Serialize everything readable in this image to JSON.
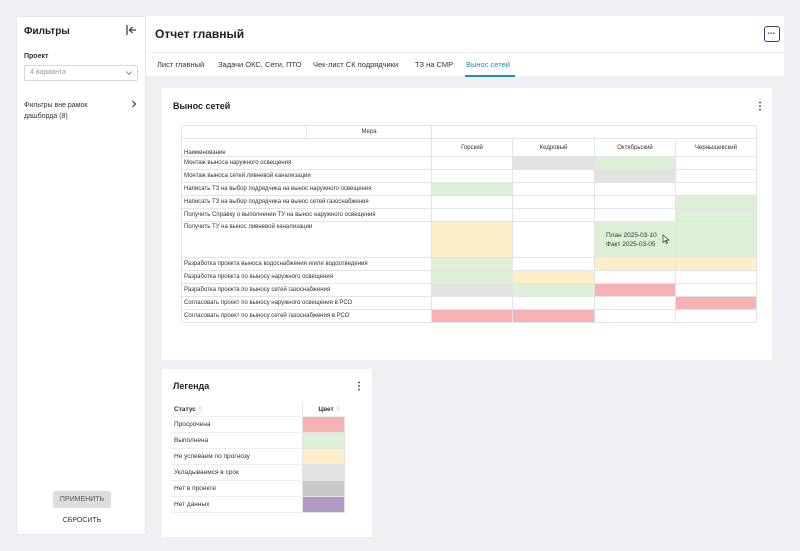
{
  "sidebar": {
    "title": "Фильтры",
    "project_label": "Проект",
    "project_value": "4 варианта",
    "outside_filters": "Фильтры вне рамок дашборда (8)",
    "apply": "ПРИМЕНИТЬ",
    "reset": "СБРОСИТЬ"
  },
  "header": {
    "title": "Отчет главный",
    "tabs": [
      "Лист главный",
      "Задачи ОКС, Сети, ПТО",
      "Чек-лист СК подрядчики",
      "ТЗ на СМР",
      "Вынос сетей"
    ],
    "active_tab": 4
  },
  "card": {
    "title": "Вынос сетей",
    "measure_header": "Мера",
    "name_header": "Наименование",
    "columns": [
      "Горский",
      "Кедровый",
      "Октябрьский",
      "Чернышевский"
    ],
    "rows": [
      {
        "name": "Монтаж выноса наружного освещения",
        "cells": [
          "",
          "gray",
          "green",
          ""
        ]
      },
      {
        "name": "Монтаж выноса сетей ливневой канализации",
        "cells": [
          "",
          "",
          "gray",
          ""
        ]
      },
      {
        "name": "Написать ТЗ на выбор подрядчика на вынос наружного освещения",
        "cells": [
          "green",
          "",
          "",
          ""
        ]
      },
      {
        "name": "Написать ТЗ на выбор подрядчика на вынос сетей газоснабжения",
        "cells": [
          "",
          "",
          "",
          "green"
        ]
      },
      {
        "name": "Получить Справку о выполнении ТУ на вынос наружного освещения",
        "cells": [
          "",
          "",
          "",
          "green"
        ]
      },
      {
        "name": "Получить ТУ на вынос ливневой канализации",
        "cells": [
          "yellow",
          "",
          "green",
          "green"
        ]
      },
      {
        "name": "Разработка проекта выноса водоснабжения и/или водоотведения",
        "cells": [
          "green",
          "",
          "yellow",
          "yellow"
        ]
      },
      {
        "name": "Разработка проекта по выносу наружного освещения",
        "cells": [
          "green",
          "yellow",
          "",
          ""
        ]
      },
      {
        "name": "Разработка проекта по выносу сетей газоснабжения",
        "cells": [
          "gray",
          "green",
          "red",
          ""
        ]
      },
      {
        "name": "Согласовать проект по выносу наружного освещения в РСО",
        "cells": [
          "",
          "",
          "",
          "red"
        ]
      },
      {
        "name": "Согласовать проект по выносу сетей газоснабжения в РСО",
        "cells": [
          "red",
          "red",
          "",
          ""
        ]
      }
    ],
    "tooltip": {
      "plan": "План 2025-03-10",
      "fact": "Факт 2025-03-05"
    }
  },
  "colors": {
    "red": "#f7b3b3",
    "green": "#deefd8",
    "yellow": "#fdf0c8",
    "gray": "#e2e2e2",
    "dgray": "#c8c8c8",
    "purple": "#b39bc2",
    "accent": "#1a8fb8"
  },
  "legend": {
    "title": "Легенда",
    "status_header": "Статус",
    "color_header": "Цвет",
    "items": [
      {
        "label": "Просрочена",
        "color": "red"
      },
      {
        "label": "Выполнена",
        "color": "green"
      },
      {
        "label": "Не успеваем по прогнозу",
        "color": "yellow"
      },
      {
        "label": "Укладываемся в срок",
        "color": "gray"
      },
      {
        "label": "Нет в проекте",
        "color": "dgray"
      },
      {
        "label": "Нет данных",
        "color": "purple"
      }
    ]
  }
}
